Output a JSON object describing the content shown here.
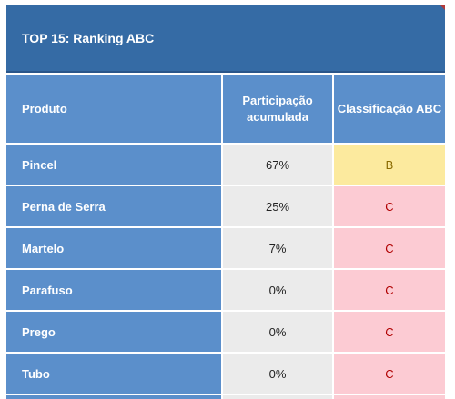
{
  "title": "TOP 15: Ranking ABC",
  "headers": {
    "product": "Produto",
    "cumulative_share": "Participação acumulada",
    "abc_class": "Classificação ABC"
  },
  "rows": [
    {
      "product": "Pincel",
      "share": "67%",
      "class": "B"
    },
    {
      "product": "Perna de Serra",
      "share": "25%",
      "class": "C"
    },
    {
      "product": "Martelo",
      "share": "7%",
      "class": "C"
    },
    {
      "product": "Parafuso",
      "share": "0%",
      "class": "C"
    },
    {
      "product": "Prego",
      "share": "0%",
      "class": "C"
    },
    {
      "product": "Tubo",
      "share": "0%",
      "class": "C"
    }
  ],
  "colors": {
    "title_bg": "#356ba5",
    "header_bg": "#5b8fcb",
    "class_B_bg": "#fcea9e",
    "class_C_bg": "#fccbd3"
  }
}
